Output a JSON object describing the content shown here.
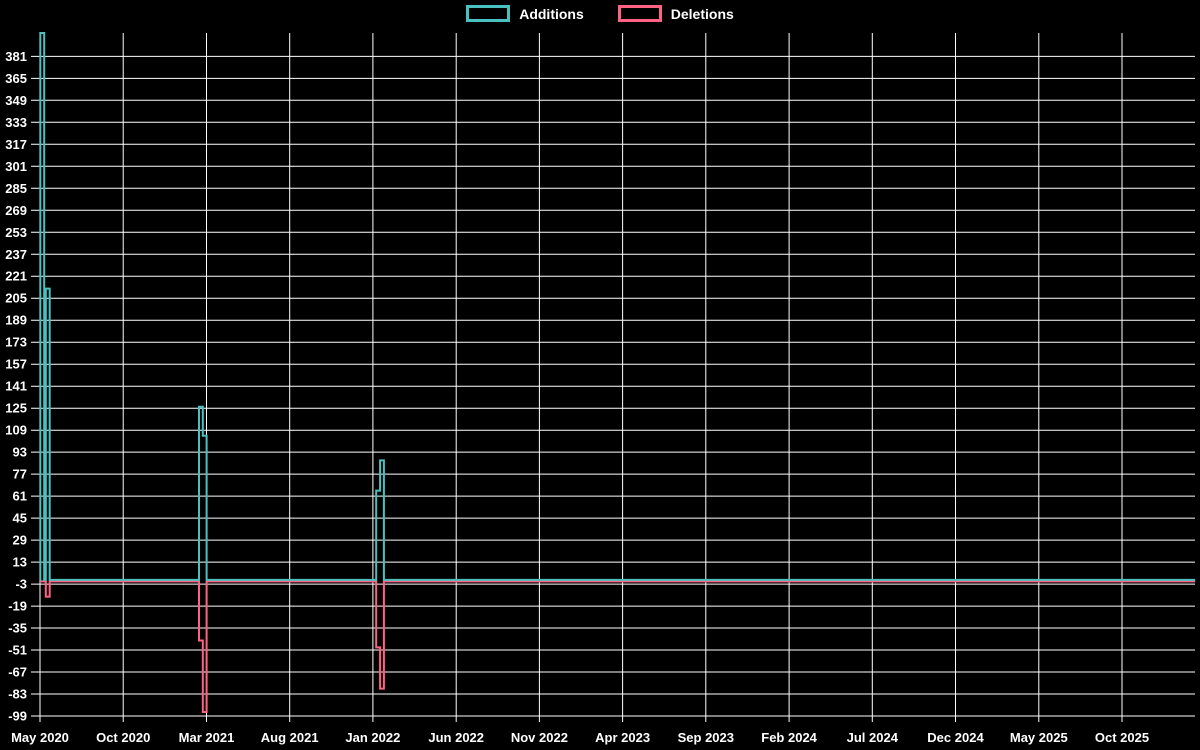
{
  "chart_data": {
    "type": "line",
    "subtype": "step-line time series (weekly code additions/deletions)",
    "title": "",
    "background_color": "#000000",
    "grid_color": "#ffffff",
    "text_color": "#ffffff",
    "grid": true,
    "legend_position": "top-center",
    "x_tick_labels": [
      "May 2020",
      "Oct 2020",
      "Mar 2021",
      "Aug 2021",
      "Jan 2022",
      "Jun 2022",
      "Nov 2022",
      "Apr 2023",
      "Sep 2023",
      "Feb 2024",
      "Jul 2024",
      "Dec 2024",
      "May 2025",
      "Oct 2025"
    ],
    "x_tick_interval_months": 5,
    "y_ticks": [
      381,
      365,
      349,
      333,
      317,
      301,
      285,
      269,
      253,
      237,
      221,
      205,
      189,
      173,
      157,
      141,
      125,
      109,
      93,
      77,
      61,
      45,
      29,
      13,
      -3,
      -19,
      -35,
      -51,
      -67,
      -83,
      -99
    ],
    "ylim": [
      -99,
      398
    ],
    "xlim_months_from_may_2020": [
      0,
      69.39
    ],
    "series": [
      {
        "name": "Additions",
        "color": "#4bc0c0",
        "points_note": "step-after points as [months_since_May_2020, value]; value 0 all other weeks",
        "points": [
          [
            0,
            0
          ],
          [
            0.02,
            398
          ],
          [
            0.25,
            0
          ],
          [
            0.35,
            212
          ],
          [
            0.58,
            0
          ],
          [
            9.55,
            126
          ],
          [
            9.78,
            105
          ],
          [
            10.01,
            0
          ],
          [
            20.2,
            65
          ],
          [
            20.43,
            87
          ],
          [
            20.66,
            0
          ],
          [
            69.39,
            0
          ]
        ]
      },
      {
        "name": "Deletions",
        "color": "#ff6384",
        "points_note": "step-after points as [months_since_May_2020, value]; value 0 all other weeks",
        "points": [
          [
            0,
            0
          ],
          [
            0.35,
            -11
          ],
          [
            0.58,
            0
          ],
          [
            9.55,
            -43
          ],
          [
            9.78,
            -95
          ],
          [
            10.01,
            0
          ],
          [
            20.2,
            -48
          ],
          [
            20.43,
            -78
          ],
          [
            20.66,
            0
          ],
          [
            69.39,
            0
          ]
        ]
      }
    ],
    "notable_events": [
      {
        "approx_date": "early May 2020",
        "additions": 398,
        "deletions": 0
      },
      {
        "approx_date": "mid May 2020",
        "additions": 212,
        "deletions": -11
      },
      {
        "approx_date": "late Feb 2021",
        "additions": 126,
        "deletions": -43
      },
      {
        "approx_date": "early Mar 2021",
        "additions": 105,
        "deletions": -95
      },
      {
        "approx_date": "late Jan 2022",
        "additions": 65,
        "deletions": -48
      },
      {
        "approx_date": "early Feb 2022",
        "additions": 87,
        "deletions": -78
      }
    ]
  }
}
